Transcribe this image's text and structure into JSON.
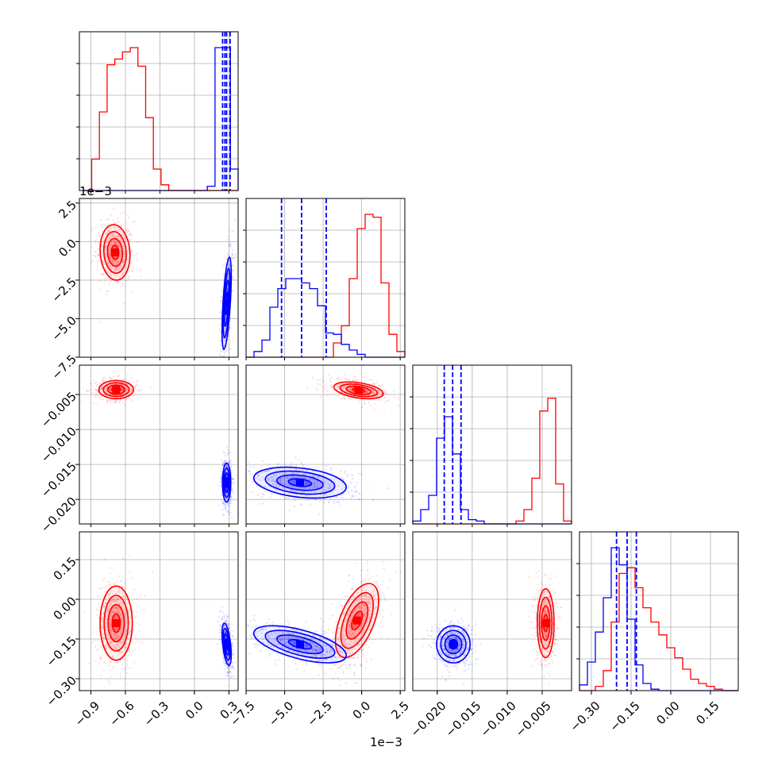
{
  "chart_data": {
    "type": "corner",
    "series": [
      {
        "name": "",
        "color": "#ff0000"
      },
      {
        "name": "",
        "color": "#0000ff"
      }
    ],
    "parameters": [
      {
        "range": [
          -1.0,
          0.38
        ],
        "ticks": [
          -0.9,
          -0.6,
          -0.3,
          0.0,
          0.3
        ],
        "tick_labels": [
          "−0.9",
          "−0.6",
          "−0.3",
          "0.0",
          "0.3"
        ],
        "offset_label": ""
      },
      {
        "range": [
          -0.0075,
          0.0028
        ],
        "ticks": [
          -0.0075,
          -0.005,
          -0.0025,
          0.0,
          0.0025
        ],
        "tick_labels": [
          "−7.5",
          "−5.0",
          "−2.5",
          "0.0",
          "2.5"
        ],
        "offset_label": "1e−3"
      },
      {
        "range": [
          -0.0235,
          -0.0008
        ],
        "ticks": [
          -0.02,
          -0.015,
          -0.01,
          -0.005
        ],
        "tick_labels": [
          "−0.020",
          "−0.015",
          "−0.010",
          "−0.005"
        ],
        "offset_label": ""
      },
      {
        "range": [
          -0.345,
          0.255
        ],
        "ticks": [
          -0.3,
          -0.15,
          0.0,
          0.15
        ],
        "tick_labels": [
          "−0.30",
          "−0.15",
          "0.00",
          "0.15"
        ],
        "offset_label": ""
      }
    ],
    "diagonal_histograms": [
      {
        "param": 0,
        "bins": [
          -0.96,
          0.38
        ],
        "red": [
          0.0,
          0.22,
          0.55,
          0.88,
          0.92,
          0.97,
          1.0,
          0.87,
          0.51,
          0.15,
          0.04,
          0,
          0,
          0,
          0,
          0,
          0,
          0,
          0,
          0
        ],
        "blue": [
          0,
          0,
          0,
          0,
          0,
          0,
          0,
          0,
          0,
          0,
          0,
          0,
          0,
          0,
          0,
          0,
          0.03,
          1.0,
          1.0,
          0.15
        ],
        "blue_quantiles": [
          0.245,
          0.265,
          0.28,
          0.31
        ]
      },
      {
        "param": 1,
        "bins": [
          -0.0075,
          0.0028
        ],
        "blue": [
          0.0,
          0.04,
          0.12,
          0.35,
          0.48,
          0.55,
          0.55,
          0.52,
          0.48,
          0.36,
          0.17,
          0.16,
          0.09,
          0.05,
          0.02,
          0,
          0,
          0,
          0,
          0
        ],
        "red": [
          0,
          0,
          0,
          0,
          0,
          0,
          0,
          0,
          0,
          0,
          0,
          0.1,
          0.22,
          0.55,
          0.9,
          1.0,
          0.98,
          0.52,
          0.16,
          0.04
        ],
        "blue_quantiles": [
          -0.0052,
          -0.0039,
          -0.0023
        ]
      },
      {
        "param": 2,
        "bins": [
          -0.0235,
          -0.0008
        ],
        "blue": [
          0.02,
          0.1,
          0.2,
          0.6,
          0.75,
          0.49,
          0.1,
          0.03,
          0.02,
          0,
          0,
          0,
          0,
          0,
          0,
          0,
          0,
          0,
          0,
          0
        ],
        "red": [
          0,
          0,
          0,
          0,
          0,
          0,
          0,
          0,
          0,
          0,
          0,
          0,
          0,
          0.02,
          0.1,
          0.32,
          0.79,
          0.88,
          0.28,
          0.02
        ],
        "blue_quantiles": [
          -0.019,
          -0.0178,
          -0.0166
        ]
      },
      {
        "param": 3,
        "bins": [
          -0.345,
          0.255
        ],
        "blue": [
          0.04,
          0.2,
          0.41,
          0.65,
          1.0,
          0.88,
          0.5,
          0.18,
          0.05,
          0.01,
          0,
          0,
          0,
          0,
          0,
          0,
          0,
          0,
          0,
          0
        ],
        "red": [
          0,
          0,
          0.03,
          0.14,
          0.48,
          0.82,
          0.86,
          0.72,
          0.58,
          0.48,
          0.39,
          0.3,
          0.23,
          0.15,
          0.08,
          0.05,
          0.03,
          0.01,
          0,
          0
        ],
        "blue_quantiles": [
          -0.205,
          -0.165,
          -0.13
        ]
      }
    ],
    "pair_blobs": [
      {
        "x": 0,
        "y": 1,
        "red": {
          "mx": -0.69,
          "my": -0.0007,
          "sx": 0.065,
          "sy": 0.0009,
          "rho": -0.1
        },
        "blue": {
          "mx": 0.28,
          "my": -0.004,
          "sx": 0.02,
          "sy": 0.0015,
          "rho": 0.6
        }
      },
      {
        "x": 0,
        "y": 2,
        "red": {
          "mx": -0.68,
          "my": -0.0043,
          "sx": 0.075,
          "sy": 0.00065,
          "rho": 0.0
        },
        "blue": {
          "mx": 0.28,
          "my": -0.0176,
          "sx": 0.018,
          "sy": 0.0014,
          "rho": 0.0
        }
      },
      {
        "x": 0,
        "y": 3,
        "red": {
          "mx": -0.68,
          "my": -0.09,
          "sx": 0.07,
          "sy": 0.07,
          "rho": 0.0
        },
        "blue": {
          "mx": 0.28,
          "my": -0.17,
          "sx": 0.02,
          "sy": 0.04,
          "rho": -0.5
        }
      },
      {
        "x": 1,
        "y": 2,
        "red": {
          "mx": -0.0002,
          "my": -0.0044,
          "sx": 0.0008,
          "sy": 0.0006,
          "rho": -0.4
        },
        "blue": {
          "mx": -0.004,
          "my": -0.0176,
          "sx": 0.0015,
          "sy": 0.0011,
          "rho": -0.3
        }
      },
      {
        "x": 1,
        "y": 3,
        "red": {
          "mx": -0.0003,
          "my": -0.08,
          "sx": 0.0007,
          "sy": 0.07,
          "rho": 0.55
        },
        "blue": {
          "mx": -0.004,
          "my": -0.17,
          "sx": 0.0015,
          "sy": 0.035,
          "rho": -0.6
        }
      },
      {
        "x": 2,
        "y": 3,
        "red": {
          "mx": -0.0045,
          "my": -0.09,
          "sx": 0.0006,
          "sy": 0.065,
          "rho": 0.0
        },
        "blue": {
          "mx": -0.0177,
          "my": -0.17,
          "sx": 0.0012,
          "sy": 0.035,
          "rho": 0.0
        }
      }
    ]
  }
}
